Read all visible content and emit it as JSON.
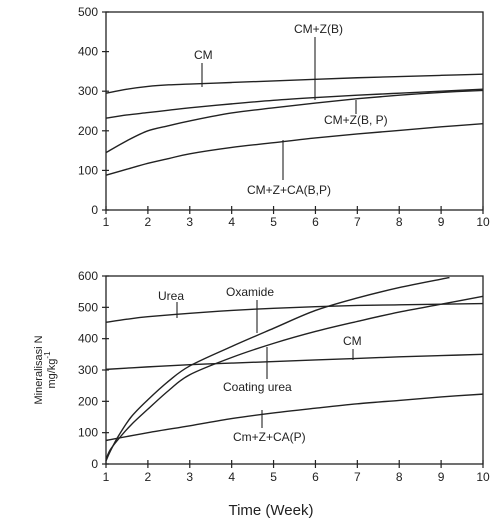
{
  "chart_data": [
    {
      "type": "line",
      "panel": "top",
      "title": "",
      "xlabel": "",
      "ylabel": "",
      "xlim": [
        1,
        10
      ],
      "ylim": [
        0,
        500
      ],
      "xticks": [
        1,
        2,
        3,
        4,
        5,
        6,
        7,
        8,
        9,
        10
      ],
      "yticks": [
        0,
        100,
        200,
        300,
        400,
        500
      ],
      "grid": false,
      "series": [
        {
          "name": "CM",
          "x": [
            1,
            1.5,
            2,
            2.5,
            3,
            4,
            5,
            6,
            7,
            8,
            9,
            10
          ],
          "y": [
            295,
            305,
            312,
            316,
            318,
            322,
            326,
            330,
            334,
            337,
            340,
            343
          ]
        },
        {
          "name": "CM+Z(B)",
          "x": [
            1,
            1.5,
            2,
            2.5,
            3,
            4,
            5,
            6,
            7,
            8,
            9,
            10
          ],
          "y": [
            232,
            240,
            246,
            252,
            258,
            268,
            277,
            284,
            290,
            295,
            300,
            305
          ]
        },
        {
          "name": "CM+Z(B, P)",
          "x": [
            1,
            1.5,
            2,
            2.5,
            3,
            4,
            5,
            6,
            7,
            8,
            9,
            10
          ],
          "y": [
            145,
            175,
            200,
            213,
            225,
            245,
            258,
            270,
            281,
            290,
            297,
            302
          ]
        },
        {
          "name": "CM+Z+CA(B,P)",
          "x": [
            1,
            1.5,
            2,
            2.5,
            3,
            4,
            5,
            6,
            7,
            8,
            9,
            10
          ],
          "y": [
            88,
            103,
            118,
            130,
            142,
            158,
            170,
            182,
            192,
            201,
            210,
            218
          ]
        }
      ],
      "annotations": [
        "CM",
        "CM+Z(B)",
        "CM+Z(B, P)",
        "CM+Z+CA(B,P)"
      ]
    },
    {
      "type": "line",
      "panel": "bottom",
      "title": "",
      "xlabel": "Time (Week)",
      "ylabel": "Mineralisasi N",
      "yunit": "mg/kg",
      "yunit_exp": "-1",
      "xlim": [
        1,
        10
      ],
      "ylim": [
        0,
        600
      ],
      "xticks": [
        1,
        2,
        3,
        4,
        5,
        6,
        7,
        8,
        9,
        10
      ],
      "yticks": [
        0,
        100,
        200,
        300,
        400,
        500,
        600
      ],
      "grid": false,
      "series": [
        {
          "name": "Urea",
          "x": [
            1,
            1.5,
            2,
            3,
            4,
            5,
            6,
            7,
            8,
            9,
            10
          ],
          "y": [
            452,
            462,
            470,
            481,
            490,
            497,
            502,
            506,
            508,
            510,
            512
          ]
        },
        {
          "name": "Oxamide",
          "x": [
            1,
            1.1,
            1.3,
            1.6,
            2,
            2.5,
            3,
            4,
            5,
            6,
            7,
            8,
            9,
            9.2
          ],
          "y": [
            10,
            40,
            90,
            150,
            205,
            265,
            313,
            375,
            433,
            490,
            530,
            563,
            590,
            595
          ]
        },
        {
          "name": "CM",
          "x": [
            1,
            2,
            3,
            4,
            5,
            6,
            7,
            8,
            9,
            10
          ],
          "y": [
            302,
            310,
            317,
            322,
            327,
            332,
            337,
            342,
            346,
            350
          ]
        },
        {
          "name": "Coating urea",
          "x": [
            1,
            1.1,
            1.3,
            1.6,
            2,
            2.5,
            3,
            4,
            5,
            6,
            7,
            8,
            9,
            10
          ],
          "y": [
            15,
            45,
            80,
            125,
            175,
            235,
            285,
            340,
            385,
            423,
            455,
            485,
            510,
            535
          ]
        },
        {
          "name": "Cm+Z+CA(P)",
          "x": [
            1,
            2,
            3,
            4,
            5,
            6,
            7,
            8,
            9,
            10
          ],
          "y": [
            75,
            100,
            122,
            145,
            163,
            178,
            192,
            203,
            214,
            223
          ]
        }
      ],
      "annotations": [
        "Urea",
        "Oxamide",
        "CM",
        "Coating urea",
        "Cm+Z+CA(P)"
      ]
    }
  ]
}
